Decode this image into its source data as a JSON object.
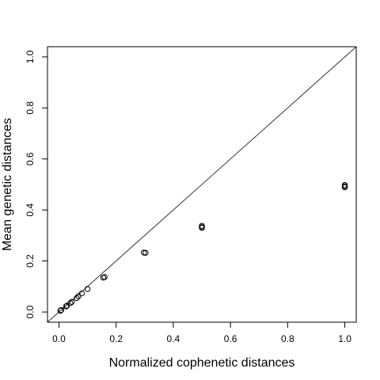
{
  "chart_data": {
    "type": "scatter",
    "title": "",
    "xlabel": "Normalized cophenetic distances",
    "ylabel": "Mean genetic distances",
    "xlim": [
      -0.04,
      1.04
    ],
    "ylim": [
      -0.04,
      1.04
    ],
    "x_ticks": [
      0.0,
      0.2,
      0.4,
      0.6,
      0.8,
      1.0
    ],
    "x_tick_labels": [
      "0.0",
      "0.2",
      "0.4",
      "0.6",
      "0.8",
      "1.0"
    ],
    "y_ticks": [
      0.0,
      0.2,
      0.4,
      0.6,
      0.8,
      1.0
    ],
    "y_tick_labels": [
      "0.0",
      "0.2",
      "0.4",
      "0.6",
      "0.8",
      "1.0"
    ],
    "grid": false,
    "reference_line": {
      "type": "identity",
      "slope": 1,
      "intercept": 0
    },
    "points": [
      {
        "x": 0.005,
        "y": 0.005
      },
      {
        "x": 0.008,
        "y": 0.008
      },
      {
        "x": 0.025,
        "y": 0.022
      },
      {
        "x": 0.028,
        "y": 0.025
      },
      {
        "x": 0.04,
        "y": 0.035
      },
      {
        "x": 0.045,
        "y": 0.04
      },
      {
        "x": 0.062,
        "y": 0.055
      },
      {
        "x": 0.068,
        "y": 0.062
      },
      {
        "x": 0.08,
        "y": 0.073
      },
      {
        "x": 0.1,
        "y": 0.09
      },
      {
        "x": 0.155,
        "y": 0.135
      },
      {
        "x": 0.16,
        "y": 0.137
      },
      {
        "x": 0.297,
        "y": 0.233
      },
      {
        "x": 0.303,
        "y": 0.232
      },
      {
        "x": 0.5,
        "y": 0.338
      },
      {
        "x": 0.5,
        "y": 0.333
      },
      {
        "x": 0.5,
        "y": 0.33
      },
      {
        "x": 1.0,
        "y": 0.498
      },
      {
        "x": 1.0,
        "y": 0.493
      },
      {
        "x": 1.0,
        "y": 0.489
      }
    ]
  }
}
